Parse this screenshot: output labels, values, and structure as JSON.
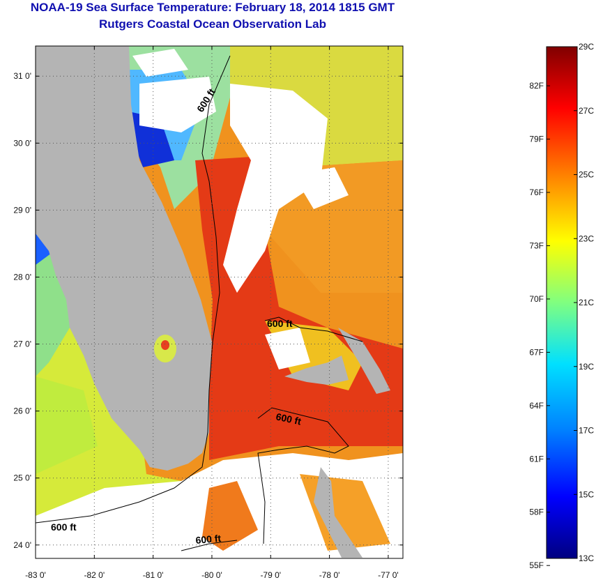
{
  "title": "NOAA-19 Sea Surface Temperature:  February 18, 2014 1815 GMT",
  "subtitle": "Rutgers Coastal Ocean Observation Lab",
  "map": {
    "lat_labels": [
      "31 0'",
      "30 0'",
      "29 0'",
      "28 0'",
      "27 0'",
      "26 0'",
      "25 0'",
      "24 0'"
    ],
    "lat_values": [
      31,
      30,
      29,
      28,
      27,
      26,
      25,
      24
    ],
    "lon_labels": [
      "-83 0'",
      "-82 0'",
      "-81 0'",
      "-80 0'",
      "-79 0'",
      "-78 0'",
      "-77 0'"
    ],
    "lon_values": [
      -83,
      -82,
      -81,
      -80,
      -79,
      -78,
      -77
    ],
    "lat_range": [
      23.8,
      31.45
    ],
    "lon_range": [
      -83.0,
      -76.75
    ],
    "contour_label": "600 ft",
    "colors": {
      "land": "#b4b4b4",
      "cloud": "#ffffff",
      "gulf_stream": "#e33a14",
      "ocean_warm": "#f08a1c",
      "shelf": "#e9e638"
    }
  },
  "colorbar": {
    "range_c": [
      13,
      29
    ],
    "celsius_labels": [
      "29C",
      "27C",
      "25C",
      "23C",
      "21C",
      "19C",
      "17C",
      "15C",
      "13C"
    ],
    "celsius_values": [
      29,
      27,
      25,
      23,
      21,
      19,
      17,
      15,
      13
    ],
    "fahrenheit_labels": [
      "82F",
      "79F",
      "76F",
      "73F",
      "70F",
      "67F",
      "64F",
      "61F",
      "58F",
      "55F"
    ],
    "fahrenheit_values": [
      82,
      79,
      76,
      73,
      70,
      67,
      64,
      61,
      58,
      55
    ]
  }
}
